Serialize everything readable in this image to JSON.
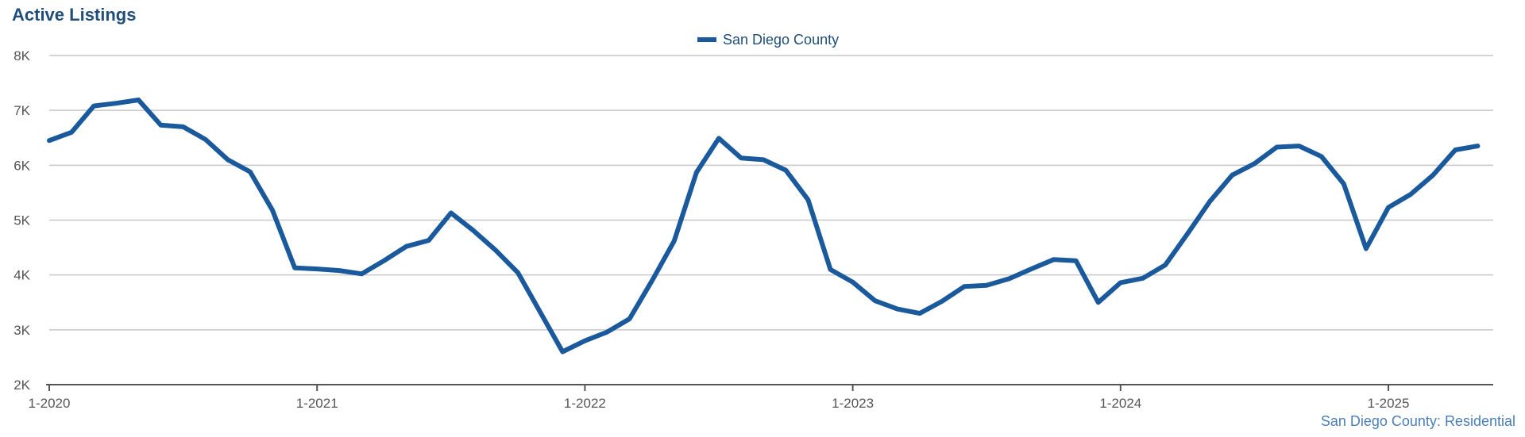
{
  "chart_data": {
    "type": "line",
    "title": "Active Listings",
    "footer": "San Diego County: Residential",
    "legend_position": "top-center",
    "grid": true,
    "ylim": [
      2000,
      8000
    ],
    "y_ticks": [
      {
        "value": 2000,
        "label": "2K"
      },
      {
        "value": 3000,
        "label": "3K"
      },
      {
        "value": 4000,
        "label": "4K"
      },
      {
        "value": 5000,
        "label": "5K"
      },
      {
        "value": 6000,
        "label": "6K"
      },
      {
        "value": 7000,
        "label": "7K"
      },
      {
        "value": 8000,
        "label": "8K"
      }
    ],
    "x_ticks": [
      "1-2020",
      "1-2021",
      "1-2022",
      "1-2023",
      "1-2024",
      "1-2025"
    ],
    "x": [
      "1-2020",
      "2-2020",
      "3-2020",
      "4-2020",
      "5-2020",
      "6-2020",
      "7-2020",
      "8-2020",
      "9-2020",
      "10-2020",
      "11-2020",
      "12-2020",
      "1-2021",
      "2-2021",
      "3-2021",
      "4-2021",
      "5-2021",
      "6-2021",
      "7-2021",
      "8-2021",
      "9-2021",
      "10-2021",
      "11-2021",
      "12-2021",
      "1-2022",
      "2-2022",
      "3-2022",
      "4-2022",
      "5-2022",
      "6-2022",
      "7-2022",
      "8-2022",
      "9-2022",
      "10-2022",
      "11-2022",
      "12-2022",
      "1-2023",
      "2-2023",
      "3-2023",
      "4-2023",
      "5-2023",
      "6-2023",
      "7-2023",
      "8-2023",
      "9-2023",
      "10-2023",
      "11-2023",
      "12-2023",
      "1-2024",
      "2-2024",
      "3-2024",
      "4-2024",
      "5-2024",
      "6-2024",
      "7-2024",
      "8-2024",
      "9-2024",
      "10-2024",
      "11-2024",
      "12-2024",
      "1-2025",
      "2-2025",
      "3-2025",
      "4-2025",
      "5-2025"
    ],
    "series": [
      {
        "name": "San Diego County",
        "color": "#1a5a9c",
        "values": [
          6450,
          6600,
          7080,
          7130,
          7190,
          6730,
          6700,
          6470,
          6100,
          5880,
          5180,
          4130,
          4110,
          4080,
          4020,
          4260,
          4520,
          4630,
          5130,
          4810,
          4450,
          4040,
          3320,
          2600,
          2800,
          2960,
          3200,
          3890,
          4620,
          5870,
          6490,
          6130,
          6100,
          5910,
          5370,
          4100,
          3870,
          3530,
          3380,
          3300,
          3520,
          3790,
          3810,
          3930,
          4110,
          4280,
          4260,
          3500,
          3860,
          3940,
          4180,
          4750,
          5340,
          5820,
          6030,
          6330,
          6350,
          6160,
          5660,
          4480,
          5230,
          5470,
          5820,
          6280,
          6350
        ]
      }
    ]
  }
}
